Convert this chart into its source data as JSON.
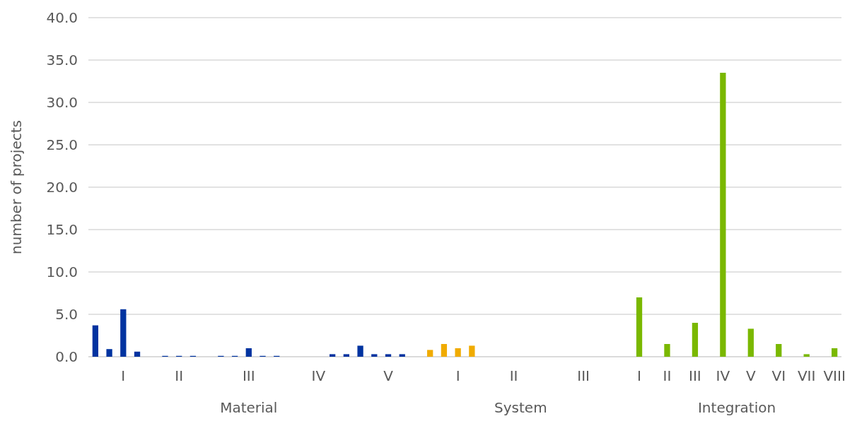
{
  "chart_data": {
    "type": "bar",
    "ylabel": "number of projects",
    "categories": [
      null,
      null,
      "I",
      null,
      null,
      null,
      "II",
      null,
      null,
      null,
      null,
      "III",
      null,
      null,
      null,
      null,
      "IV",
      null,
      null,
      null,
      null,
      "V",
      null,
      null,
      null,
      null,
      "I",
      null,
      null,
      null,
      "II",
      null,
      null,
      null,
      null,
      "III",
      null,
      null,
      null,
      "I",
      null,
      "II",
      null,
      "III",
      null,
      "IV",
      null,
      "V",
      null,
      "VI",
      null,
      "VII",
      null,
      "VIII"
    ],
    "values": [
      3.7,
      0.9,
      5.6,
      0.6,
      null,
      0.1,
      0.1,
      0.1,
      null,
      0.1,
      0.1,
      1.0,
      0.1,
      0.1,
      null,
      null,
      null,
      0.3,
      0.3,
      1.3,
      0.3,
      0.3,
      0.3,
      null,
      0.8,
      1.5,
      1.0,
      1.3,
      null,
      null,
      null,
      null,
      null,
      null,
      null,
      null,
      null,
      null,
      null,
      7.0,
      null,
      1.5,
      null,
      4.0,
      null,
      33.5,
      null,
      3.3,
      null,
      1.5,
      null,
      0.3,
      null,
      1.0
    ],
    "colors": [
      "#0033a0",
      "#0033a0",
      "#0033a0",
      "#0033a0",
      null,
      "#0033a0",
      "#0033a0",
      "#0033a0",
      null,
      "#0033a0",
      "#0033a0",
      "#0033a0",
      "#0033a0",
      "#0033a0",
      null,
      null,
      null,
      "#0033a0",
      "#0033a0",
      "#0033a0",
      "#0033a0",
      "#0033a0",
      "#0033a0",
      null,
      "#f0ab00",
      "#f0ab00",
      "#f0ab00",
      "#f0ab00",
      null,
      null,
      null,
      null,
      null,
      null,
      null,
      null,
      null,
      null,
      null,
      "#7ab800",
      null,
      "#7ab800",
      null,
      "#7ab800",
      null,
      "#7ab800",
      null,
      "#7ab800",
      null,
      "#7ab800",
      null,
      "#7ab800",
      null,
      "#7ab800"
    ],
    "ylim": [
      0,
      40
    ],
    "yticks": [
      {
        "value": 0,
        "label": "0.0"
      },
      {
        "value": 5,
        "label": "5.0"
      },
      {
        "value": 10,
        "label": "10.0"
      },
      {
        "value": 15,
        "label": "15.0"
      },
      {
        "value": 20,
        "label": "20.0"
      },
      {
        "value": 25,
        "label": "25.0"
      },
      {
        "value": 30,
        "label": "30.0"
      },
      {
        "value": 35,
        "label": "35.0"
      },
      {
        "value": 40,
        "label": "40.0"
      }
    ],
    "grid": "y",
    "annotations": [
      "Material",
      "System",
      "Integration"
    ]
  }
}
